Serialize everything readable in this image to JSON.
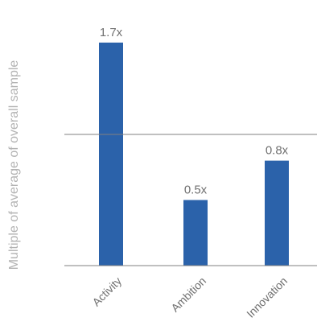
{
  "chart_data": {
    "type": "bar",
    "categories": [
      "Activity",
      "Ambition",
      "Innovation"
    ],
    "values": [
      1.7,
      0.5,
      0.8
    ],
    "data_labels": [
      "1.7x",
      "0.5x",
      "0.8x"
    ],
    "title": "",
    "xlabel": "",
    "ylabel": "Multiple of average of overall sample",
    "ylim": [
      0,
      2
    ],
    "reference_lines": [
      1
    ],
    "grid": false,
    "legend": "none",
    "bar_color": "#2b62aa",
    "axis_color": "#808080"
  }
}
